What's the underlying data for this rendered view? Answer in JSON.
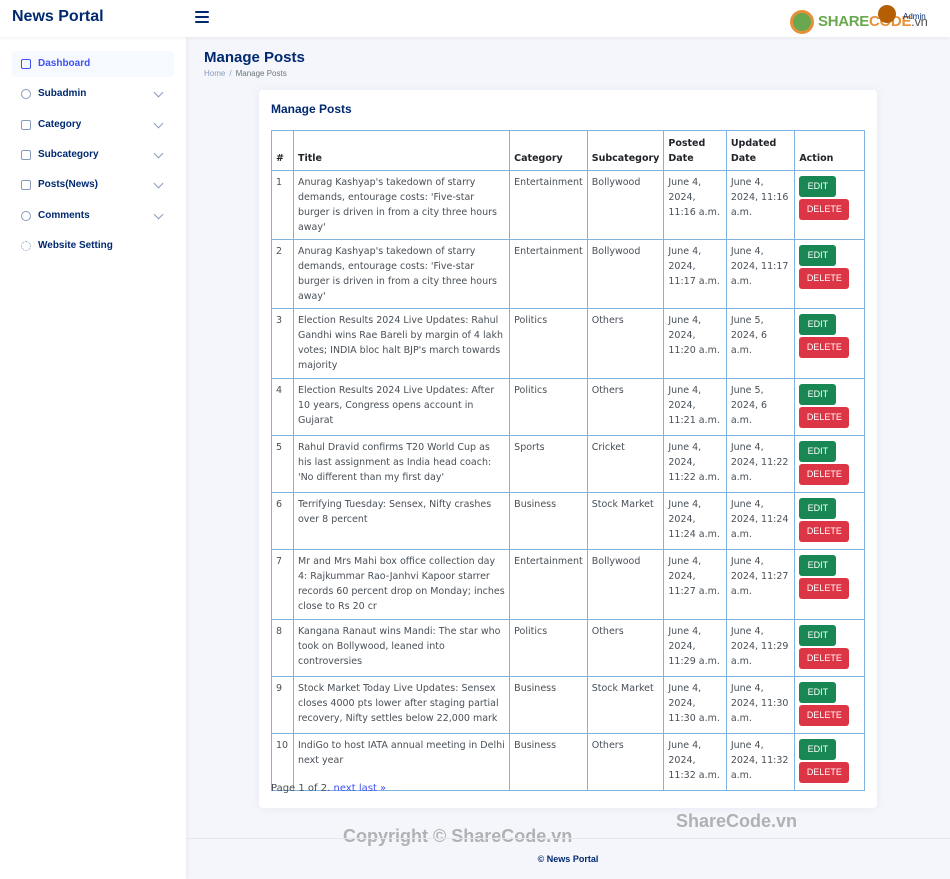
{
  "app": {
    "brand": "News Portal"
  },
  "header": {
    "logo_main": "SHARE",
    "logo_accent": "CODE",
    "logo_suffix": ".vn",
    "user_label": "Admin"
  },
  "sidebar": {
    "items": [
      {
        "label": "Dashboard",
        "icon": "grid-icon",
        "active": true,
        "expandable": false
      },
      {
        "label": "Subadmin",
        "icon": "person-icon",
        "expandable": true
      },
      {
        "label": "Category",
        "icon": "layout-icon",
        "expandable": true
      },
      {
        "label": "Subcategory",
        "icon": "table-icon",
        "expandable": true
      },
      {
        "label": "Posts(News)",
        "icon": "file-icon",
        "expandable": true
      },
      {
        "label": "Comments",
        "icon": "chat-icon",
        "expandable": true
      },
      {
        "label": "Website Setting",
        "icon": "gear-icon",
        "expandable": false
      }
    ]
  },
  "page": {
    "title": "Manage Posts",
    "breadcrumb": {
      "home": "Home",
      "separator": "/",
      "current": "Manage Posts"
    }
  },
  "card": {
    "title": "Manage Posts",
    "columns": [
      "#",
      "Title",
      "Category",
      "Subcategory",
      "Posted Date",
      "Updated Date",
      "Action"
    ],
    "edit_label": "EDIT",
    "delete_label": "DELETE",
    "rows": [
      {
        "num": "1",
        "title": "Anurag Kashyap's takedown of starry demands, entourage costs: 'Five-star burger is driven in from a city three hours away'",
        "category": "Entertainment",
        "subcategory": "Bollywood",
        "posted": "June 4, 2024, 11:16 a.m.",
        "updated": "June 4, 2024, 11:16 a.m."
      },
      {
        "num": "2",
        "title": "Anurag Kashyap's takedown of starry demands, entourage costs: 'Five-star burger is driven in from a city three hours away'",
        "category": "Entertainment",
        "subcategory": "Bollywood",
        "posted": "June 4, 2024, 11:17 a.m.",
        "updated": "June 4, 2024, 11:17 a.m."
      },
      {
        "num": "3",
        "title": "Election Results 2024 Live Updates: Rahul Gandhi wins Rae Bareli by margin of 4 lakh votes; INDIA bloc halt BJP's march towards majority",
        "category": "Politics",
        "subcategory": "Others",
        "posted": "June 4, 2024, 11:20 a.m.",
        "updated": "June 5, 2024, 6 a.m."
      },
      {
        "num": "4",
        "title": "Election Results 2024 Live Updates: After 10 years, Congress opens account in Gujarat",
        "category": "Politics",
        "subcategory": "Others",
        "posted": "June 4, 2024, 11:21 a.m.",
        "updated": "June 5, 2024, 6 a.m."
      },
      {
        "num": "5",
        "title": "Rahul Dravid confirms T20 World Cup as his last assignment as India head coach: 'No different than my first day'",
        "category": "Sports",
        "subcategory": "Cricket",
        "posted": "June 4, 2024, 11:22 a.m.",
        "updated": "June 4, 2024, 11:22 a.m."
      },
      {
        "num": "6",
        "title": "Terrifying Tuesday: Sensex, Nifty crashes over 8 percent",
        "category": "Business",
        "subcategory": "Stock Market",
        "posted": "June 4, 2024, 11:24 a.m.",
        "updated": "June 4, 2024, 11:24 a.m."
      },
      {
        "num": "7",
        "title": "Mr and Mrs Mahi box office collection day 4: Rajkummar Rao-Janhvi Kapoor starrer records 60 percent drop on Monday; inches close to Rs 20 cr",
        "category": "Entertainment",
        "subcategory": "Bollywood",
        "posted": "June 4, 2024, 11:27 a.m.",
        "updated": "June 4, 2024, 11:27 a.m."
      },
      {
        "num": "8",
        "title": "Kangana Ranaut wins Mandi: The star who took on Bollywood, leaned into controversies",
        "category": "Politics",
        "subcategory": "Others",
        "posted": "June 4, 2024, 11:29 a.m.",
        "updated": "June 4, 2024, 11:29 a.m."
      },
      {
        "num": "9",
        "title": "Stock Market Today Live Updates: Sensex closes 4000 pts lower after staging partial recovery, Nifty settles below 22,000 mark",
        "category": "Business",
        "subcategory": "Stock Market",
        "posted": "June 4, 2024, 11:30 a.m.",
        "updated": "June 4, 2024, 11:30 a.m."
      },
      {
        "num": "10",
        "title": "IndiGo to host IATA annual meeting in Delhi next year",
        "category": "Business",
        "subcategory": "Others",
        "posted": "June 4, 2024, 11:32 a.m.",
        "updated": "June 4, 2024, 11:32 a.m."
      }
    ],
    "pagination": {
      "text": "Page 1 of 2.",
      "next_label": "next",
      "last_label": "last »"
    }
  },
  "footer": {
    "text": "© News Portal"
  },
  "watermark": {
    "left": "Copyright © ShareCode.vn",
    "right": "ShareCode.vn"
  }
}
